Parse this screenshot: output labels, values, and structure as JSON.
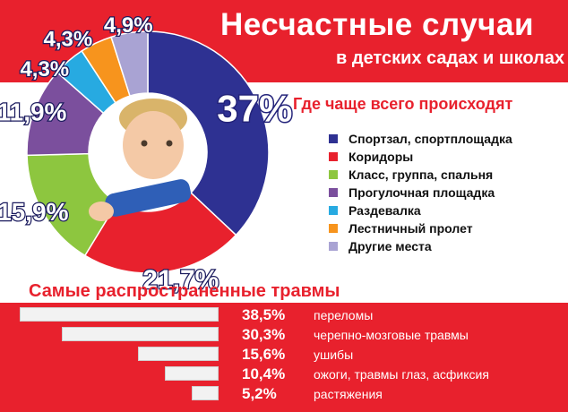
{
  "title": "Несчастные случаи",
  "subtitle": "в детских садах и школах",
  "where_heading": "Где чаще всего происходят",
  "injury_heading": "Самые распространенные травмы",
  "colors": {
    "accent_red": "#e8212d",
    "white": "#ffffff"
  },
  "chart_data": [
    {
      "type": "pie",
      "variant": "donut",
      "title": "Где чаще всего происходят",
      "legend_position": "right",
      "slices": [
        {
          "label": "Спортзал, спортплощадка",
          "value": 37.0,
          "display": "37%",
          "color": "#2e3192"
        },
        {
          "label": "Коридоры",
          "value": 21.7,
          "display": "21,7%",
          "color": "#e8212d"
        },
        {
          "label": "Класс, группа, спальня",
          "value": 15.9,
          "display": "15,9%",
          "color": "#8dc63f"
        },
        {
          "label": "Прогулочная площадка",
          "value": 11.9,
          "display": "11,9%",
          "color": "#7b4f9d"
        },
        {
          "label": "Раздевалка",
          "value": 4.3,
          "display": "4,3%",
          "color": "#27aae1"
        },
        {
          "label": "Лестничный пролет",
          "value": 4.3,
          "display": "4,3%",
          "color": "#f7941d"
        },
        {
          "label": "Другие места",
          "value": 4.9,
          "display": "4,9%",
          "color": "#a9a3d3"
        }
      ]
    },
    {
      "type": "bar",
      "orientation": "horizontal",
      "title": "Самые распространенные травмы",
      "categories": [
        "переломы",
        "черепно-мозговые травмы",
        "ушибы",
        "ожоги, травмы глаз, асфиксия",
        "растяжения"
      ],
      "values": [
        38.5,
        30.3,
        15.6,
        10.4,
        5.2
      ],
      "value_labels": [
        "38,5%",
        "30,3%",
        "15,6%",
        "10,4%",
        "5,2%"
      ],
      "bar_color": "#f2f2f2"
    }
  ]
}
